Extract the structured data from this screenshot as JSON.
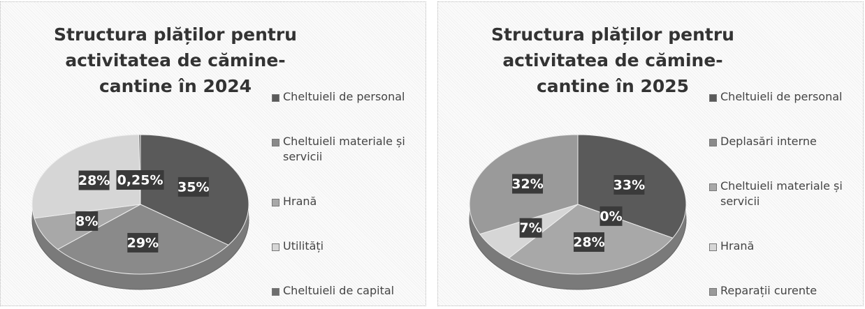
{
  "chart_data": [
    {
      "type": "pie",
      "title": "Structura plăților pentru activitatea de cămine-cantine în 2024",
      "categories": [
        "Cheltuieli de personal",
        "Cheltuieli materiale și servicii",
        "Hrană",
        "Utilități",
        "Cheltuieli de capital"
      ],
      "values": [
        35,
        29,
        8,
        28,
        0.25
      ],
      "value_labels": [
        "35%",
        "29%",
        "8%",
        "28%",
        "0,25%"
      ],
      "colors": [
        "#5a5a5a",
        "#8a8a8a",
        "#a8a8a8",
        "#d6d6d6",
        "#6e6e6e"
      ],
      "legend": "right"
    },
    {
      "type": "pie",
      "title": "Structura plăților pentru activitatea de cămine-cantine în 2025",
      "categories": [
        "Cheltuieli de personal",
        "Deplasări interne",
        "Cheltuieli materiale și servicii",
        "Hrană",
        "Reparații curente"
      ],
      "values": [
        33,
        0,
        28,
        7,
        32
      ],
      "value_labels": [
        "33%",
        "0%",
        "28%",
        "7%",
        "32%"
      ],
      "colors": [
        "#5a5a5a",
        "#8a8a8a",
        "#a8a8a8",
        "#d6d6d6",
        "#9a9a9a"
      ],
      "legend": "right"
    }
  ]
}
